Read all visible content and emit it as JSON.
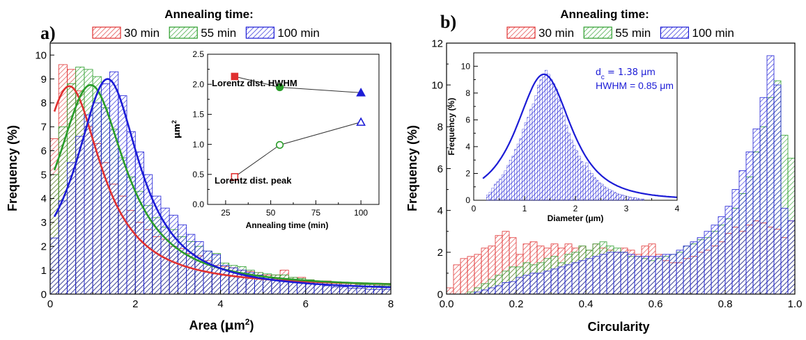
{
  "colors": {
    "30": "#e03030",
    "55": "#2a9d2a",
    "100": "#1c1cd6",
    "inset_b": "#1c1cd6",
    "inset_line": "#333333"
  },
  "chart_data": [
    {
      "type": "bar",
      "panel": "a)",
      "legend_title": "Annealing time:",
      "xlabel_pre": "Area (",
      "xlabel_mu": "μ",
      "xlabel_unit": "m",
      "xlabel_sup": "2",
      "xlabel_post": ")",
      "ylabel": "Frequency (%)",
      "xlim": [
        0,
        8
      ],
      "ylim": [
        0,
        10.5
      ],
      "xticks": [
        0,
        2,
        4,
        6,
        8
      ],
      "yticks": [
        0,
        1,
        2,
        3,
        4,
        5,
        6,
        7,
        8,
        9,
        10
      ],
      "bin_width": 0.2,
      "series": [
        {
          "name": "30 min",
          "color_key": "30",
          "fit_peak": 8.7,
          "fit_x0": 0.45,
          "fit_gamma": 0.92,
          "fit_base": 0.3,
          "values": [
            6.5,
            9.6,
            9.4,
            8.5,
            7.0,
            6.3,
            5.5,
            4.6,
            4.1,
            3.5,
            3.0,
            2.7,
            2.4,
            2.3,
            2.0,
            1.9,
            1.7,
            1.6,
            1.4,
            1.2,
            1.15,
            1.1,
            1.0,
            0.95,
            0.9,
            0.8,
            0.8,
            1.0,
            0.7,
            0.7,
            0.6,
            0.55,
            0.55,
            0.5,
            0.5,
            0.45,
            0.45,
            0.45,
            0.4,
            0.4
          ]
        },
        {
          "name": "55 min",
          "color_key": "55",
          "fit_peak": 8.75,
          "fit_x0": 0.95,
          "fit_gamma": 1.0,
          "fit_base": 0.25,
          "values": [
            5.0,
            7.0,
            8.8,
            9.5,
            9.4,
            9.1,
            7.8,
            6.9,
            5.7,
            4.9,
            4.3,
            3.7,
            3.2,
            2.8,
            2.7,
            2.4,
            2.2,
            2.0,
            1.8,
            1.7,
            1.3,
            1.2,
            1.15,
            1.0,
            0.9,
            0.85,
            0.8,
            0.8,
            0.7,
            0.65,
            0.6,
            0.55,
            0.5,
            0.5,
            0.45,
            0.45,
            0.4,
            0.4,
            0.35,
            0.35
          ]
        },
        {
          "name": "100 min",
          "color_key": "100",
          "fit_peak": 9.0,
          "fit_x0": 1.35,
          "fit_gamma": 0.92,
          "fit_base": 0.12,
          "values": [
            2.35,
            3.9,
            5.5,
            6.6,
            7.5,
            8.0,
            8.8,
            9.3,
            8.3,
            6.8,
            5.95,
            5.0,
            4.1,
            3.6,
            3.3,
            2.9,
            2.5,
            2.2,
            1.8,
            1.65,
            1.2,
            1.1,
            1.0,
            0.9,
            0.8,
            0.7,
            0.65,
            0.6,
            0.55,
            0.5,
            0.45,
            0.4,
            0.35,
            0.3,
            0.3,
            0.25,
            0.25,
            0.2,
            0.2,
            0.2
          ]
        }
      ],
      "inset": {
        "type": "scatter",
        "xlabel": "Annealing time (min)",
        "ylabel_pre": "μm",
        "ylabel_sup": "2",
        "xlim": [
          15,
          110
        ],
        "ylim": [
          0,
          2.5
        ],
        "xticks": [
          25,
          50,
          75,
          100
        ],
        "yticks": [
          "0.0",
          "0.5",
          "1.0",
          "1.5",
          "2.0",
          "2.5"
        ],
        "series": [
          {
            "name": "Lorentz dist. HWHM",
            "filled": true,
            "x": [
              30,
              55,
              100
            ],
            "y": [
              2.13,
              1.95,
              1.86
            ],
            "markers": [
              "square",
              "circle",
              "triangle"
            ]
          },
          {
            "name": "Lorentz dist. peak",
            "filled": false,
            "x": [
              30,
              55,
              100
            ],
            "y": [
              0.46,
              0.99,
              1.37
            ],
            "markers": [
              "square",
              "circle",
              "triangle"
            ]
          }
        ]
      }
    },
    {
      "type": "bar",
      "panel": "b)",
      "legend_title": "Annealing time:",
      "xlabel": "Circularity",
      "ylabel": "Frequency (%)",
      "xlim": [
        0,
        1.0
      ],
      "ylim": [
        0,
        12
      ],
      "xticks": [
        "0.0",
        "0.2",
        "0.4",
        "0.6",
        "0.8",
        "1.0"
      ],
      "yticks": [
        0,
        2,
        4,
        6,
        8,
        10,
        12
      ],
      "bin_width": 0.02,
      "series": [
        {
          "name": "30 min",
          "color_key": "30",
          "values": [
            0.3,
            1.4,
            1.7,
            1.8,
            1.9,
            2.2,
            2.3,
            2.8,
            3.0,
            2.7,
            1.9,
            2.4,
            2.5,
            2.3,
            2.2,
            2.4,
            2.2,
            2.4,
            2.2,
            2.3,
            2.1,
            2.4,
            2.2,
            2.1,
            2.0,
            2.2,
            2.1,
            1.9,
            2.3,
            2.4,
            1.9,
            1.6,
            1.5,
            1.5,
            1.7,
            1.8,
            2.0,
            2.1,
            2.3,
            2.5,
            2.9,
            3.2,
            3.0,
            3.3,
            3.5,
            3.4,
            3.2,
            3.1,
            2.7,
            3.5
          ]
        },
        {
          "name": "55 min",
          "color_key": "55",
          "values": [
            0.0,
            0.0,
            0.0,
            0.1,
            0.3,
            0.5,
            0.7,
            0.9,
            1.1,
            1.3,
            1.3,
            1.5,
            1.4,
            1.5,
            1.7,
            1.8,
            1.5,
            1.9,
            2.0,
            2.3,
            2.1,
            2.4,
            2.5,
            2.3,
            2.2,
            2.0,
            1.8,
            1.8,
            1.7,
            1.6,
            1.7,
            1.8,
            1.9,
            2.0,
            2.3,
            2.4,
            2.6,
            2.7,
            3.0,
            3.3,
            3.6,
            4.1,
            4.8,
            5.6,
            6.8,
            8.0,
            9.4,
            10.2,
            7.6,
            6.5
          ]
        },
        {
          "name": "100 min",
          "color_key": "100",
          "values": [
            0.0,
            0.0,
            0.0,
            0.0,
            0.1,
            0.2,
            0.3,
            0.4,
            0.55,
            0.6,
            0.8,
            0.9,
            1.0,
            1.0,
            1.1,
            1.2,
            1.3,
            1.4,
            1.5,
            1.6,
            1.7,
            1.8,
            1.9,
            2.0,
            2.0,
            2.0,
            1.9,
            1.8,
            1.8,
            1.8,
            1.8,
            1.9,
            1.9,
            2.1,
            2.3,
            2.5,
            2.7,
            3.0,
            3.3,
            3.7,
            4.2,
            5.0,
            5.9,
            6.8,
            7.9,
            9.4,
            11.4,
            10.0,
            4.1,
            3.5
          ]
        }
      ],
      "inset": {
        "type": "bar",
        "xlabel": "Diameter (μm)",
        "ylabel": "Frequency (%)",
        "xlim": [
          0,
          4
        ],
        "ylim": [
          0,
          11
        ],
        "xticks": [
          0,
          1,
          2,
          3,
          4
        ],
        "yticks": [
          0,
          2,
          4,
          6,
          8,
          10
        ],
        "annotation_d": "d",
        "annotation_d_sub": "c",
        "annotation_d_rest": " = 1.38 μm",
        "annotation_hwhm": "HWHM = 0.85 μm",
        "fit_center": 1.38,
        "fit_hwhm": 0.85,
        "fit_peak": 9.4,
        "bin_width": 0.05,
        "values": [
          0.4,
          0.6,
          0.9,
          1.2,
          1.4,
          1.6,
          1.9,
          2.2,
          2.6,
          3.0,
          3.3,
          3.8,
          4.2,
          4.6,
          5.3,
          5.8,
          6.2,
          6.8,
          7.2,
          7.8,
          8.6,
          9.0,
          9.4,
          9.7,
          9.4,
          9.0,
          8.7,
          8.3,
          7.5,
          6.9,
          6.3,
          5.6,
          5.0,
          4.5,
          4.1,
          3.7,
          3.3,
          2.9,
          2.6,
          2.8,
          2.2,
          2.0,
          1.7,
          1.5,
          1.3,
          1.2,
          1.0,
          0.9,
          0.8,
          0.7,
          0.6,
          0.5,
          0.45,
          0.4,
          0.35,
          0.3,
          0.25,
          0.2,
          0.2,
          0.15,
          0.1,
          0.1
        ]
      }
    }
  ]
}
